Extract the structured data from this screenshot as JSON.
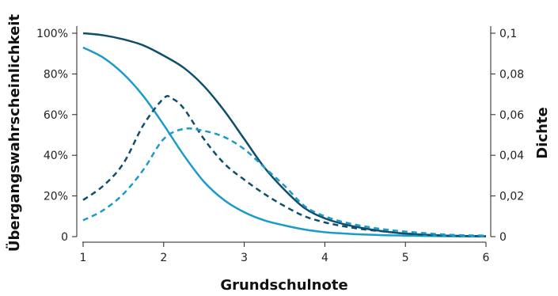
{
  "chart_data": {
    "type": "line",
    "xlabel": "Grundschulnote",
    "ylabel_left": "Übergangswahrscheinlichkeit",
    "ylabel_right": "Dichte",
    "xlim": [
      1,
      6
    ],
    "ylim_left": [
      0,
      1.0
    ],
    "ylim_right": [
      0,
      0.1
    ],
    "x_ticks": [
      "1",
      "2",
      "3",
      "4",
      "5",
      "6"
    ],
    "y_left_ticks": [
      "0",
      "20%",
      "40%",
      "60%",
      "80%",
      "100%"
    ],
    "y_right_ticks": [
      "0",
      "0,02",
      "0,04",
      "0,06",
      "0,08",
      "0,1"
    ],
    "grid": false,
    "colors": {
      "dark": "#0f4f6b",
      "light": "#1a9bc9"
    },
    "series": [
      {
        "axis": "left",
        "style": "solid",
        "color": "#0f4f6b",
        "x": [
          1,
          1.25,
          1.5,
          1.75,
          2,
          2.25,
          2.5,
          2.75,
          3,
          3.25,
          3.5,
          3.75,
          4,
          4.25,
          4.5,
          4.75,
          5,
          5.5,
          6
        ],
        "y": [
          1.0,
          0.99,
          0.97,
          0.94,
          0.89,
          0.83,
          0.74,
          0.62,
          0.48,
          0.34,
          0.23,
          0.14,
          0.09,
          0.06,
          0.04,
          0.025,
          0.015,
          0.005,
          0.002
        ]
      },
      {
        "axis": "left",
        "style": "solid",
        "color": "#1a9bc9",
        "x": [
          1,
          1.25,
          1.5,
          1.75,
          2,
          2.25,
          2.5,
          2.75,
          3,
          3.25,
          3.5,
          3.75,
          4,
          4.25,
          4.5,
          4.75,
          5,
          5.5,
          6
        ],
        "y": [
          0.93,
          0.88,
          0.8,
          0.69,
          0.55,
          0.4,
          0.27,
          0.18,
          0.12,
          0.08,
          0.055,
          0.035,
          0.022,
          0.015,
          0.01,
          0.007,
          0.005,
          0.002,
          0.001
        ]
      },
      {
        "axis": "right",
        "style": "dashed",
        "color": "#0f4f6b",
        "x": [
          1,
          1.25,
          1.5,
          1.75,
          2,
          2.1,
          2.25,
          2.5,
          2.75,
          3,
          3.25,
          3.5,
          3.75,
          4,
          4.25,
          4.5,
          4.75,
          5,
          5.5,
          6
        ],
        "y": [
          0.018,
          0.025,
          0.036,
          0.055,
          0.068,
          0.068,
          0.063,
          0.048,
          0.036,
          0.028,
          0.021,
          0.015,
          0.01,
          0.007,
          0.005,
          0.0035,
          0.0025,
          0.0015,
          0.0005,
          0.0002
        ]
      },
      {
        "axis": "right",
        "style": "dashed",
        "color": "#1a9bc9",
        "x": [
          1,
          1.25,
          1.5,
          1.75,
          2,
          2.25,
          2.5,
          2.75,
          3,
          3.25,
          3.5,
          3.75,
          4,
          4.25,
          4.5,
          4.75,
          5,
          5.5,
          6
        ],
        "y": [
          0.008,
          0.013,
          0.021,
          0.033,
          0.048,
          0.053,
          0.052,
          0.049,
          0.043,
          0.034,
          0.025,
          0.015,
          0.01,
          0.007,
          0.005,
          0.0035,
          0.0025,
          0.001,
          0.0005
        ]
      }
    ]
  }
}
